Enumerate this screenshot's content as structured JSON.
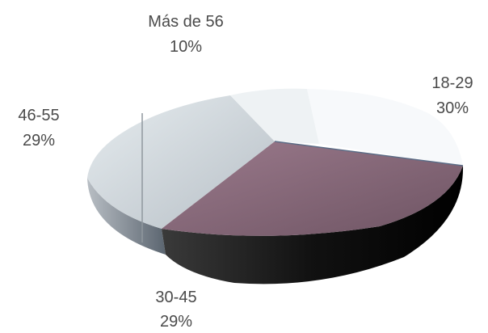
{
  "chart_data": {
    "type": "pie",
    "style": "3d",
    "slices": [
      {
        "label": "18-29",
        "value": 30,
        "value_text": "30%",
        "color": "#8a6d7e"
      },
      {
        "label": "30-45",
        "value": 29,
        "value_text": "29%",
        "color": "#8a6d7e"
      },
      {
        "label": "46-55",
        "value": 29,
        "value_text": "29%",
        "color": "#c9ced3"
      },
      {
        "label": "Más de 56",
        "value": 10,
        "value_text": "10%",
        "color": "#f4f6f8"
      }
    ],
    "title": "",
    "legend": "none",
    "data_labels": "outside"
  }
}
